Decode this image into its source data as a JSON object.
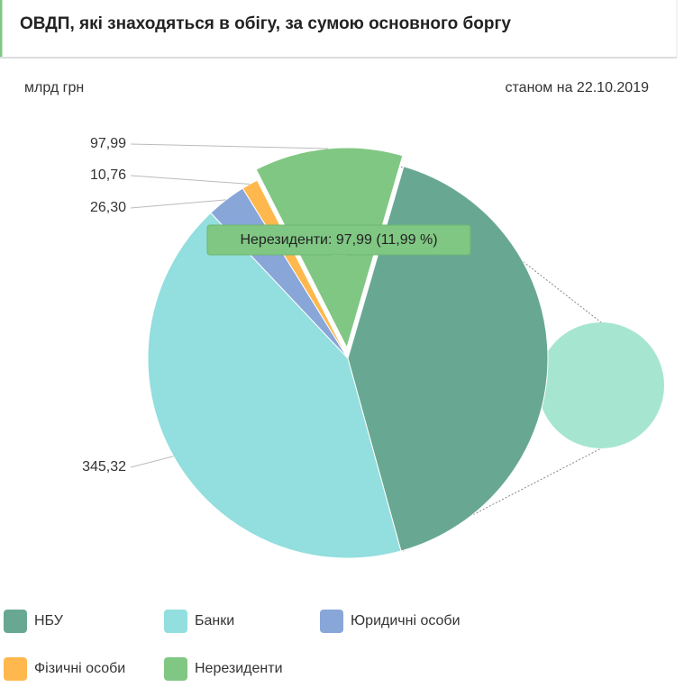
{
  "chart_data": {
    "type": "pie",
    "title": "ОВДП, які знаходяться в обігу, за сумою основного боргу",
    "unit": "млрд грн",
    "date_note": "станом на 22.10.2019",
    "categories": [
      "НБУ",
      "Банки",
      "Юридичні особи",
      "Фізичні особи",
      "Нерезиденти"
    ],
    "values": [
      336.89,
      345.32,
      26.3,
      10.76,
      97.99
    ],
    "value_labels": [
      null,
      "345,32",
      "26,30",
      "10,76",
      "97,99"
    ],
    "colors": [
      "#68a893",
      "#93dede",
      "#88a6d8",
      "#ffb84d",
      "#80c783"
    ],
    "tooltip": "Нерезиденти: 97,99 (11,99 %)"
  }
}
